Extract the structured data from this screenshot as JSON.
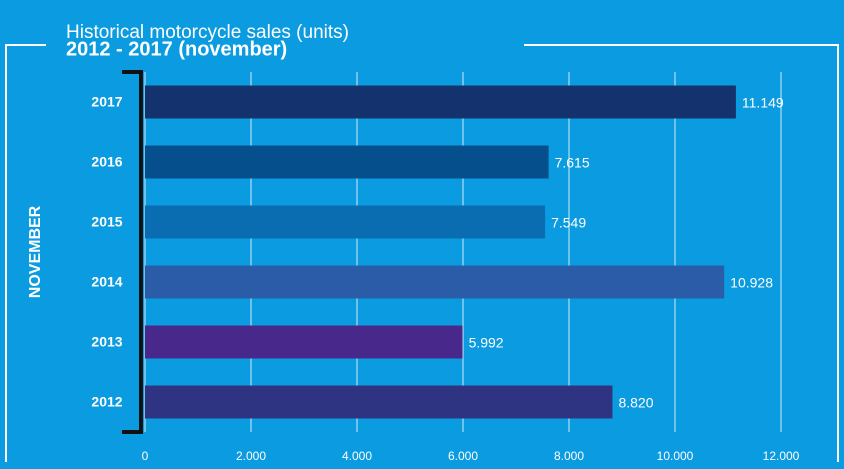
{
  "chart_data": {
    "type": "barh",
    "title": "Historical motorcycle sales (units)",
    "subtitle": "2012 - 2017 (november)",
    "ylabel": "NOVEMBER",
    "categories": [
      "2017",
      "2016",
      "2015",
      "2014",
      "2013",
      "2012"
    ],
    "values": [
      11149,
      7615,
      7549,
      10928,
      5992,
      8820
    ],
    "value_labels": [
      "11.149",
      "7.615",
      "7.549",
      "10.928",
      "5.992",
      "8.820"
    ],
    "colors": [
      "#14336e",
      "#054f8d",
      "#0a6db2",
      "#2a5ca8",
      "#48288a",
      "#2f3482"
    ],
    "xlim": [
      0,
      12000
    ],
    "xticks": [
      0,
      {
        "value": 2000,
        "label": "2.000"
      },
      {
        "value": 4000,
        "label": "4.000"
      },
      {
        "value": 6000,
        "label": "6.000"
      },
      {
        "value": 8000,
        "label": "8.000"
      },
      {
        "value": 10000,
        "label": "10.000"
      },
      {
        "value": 12000,
        "label": "12.000"
      }
    ],
    "grid": true
  }
}
